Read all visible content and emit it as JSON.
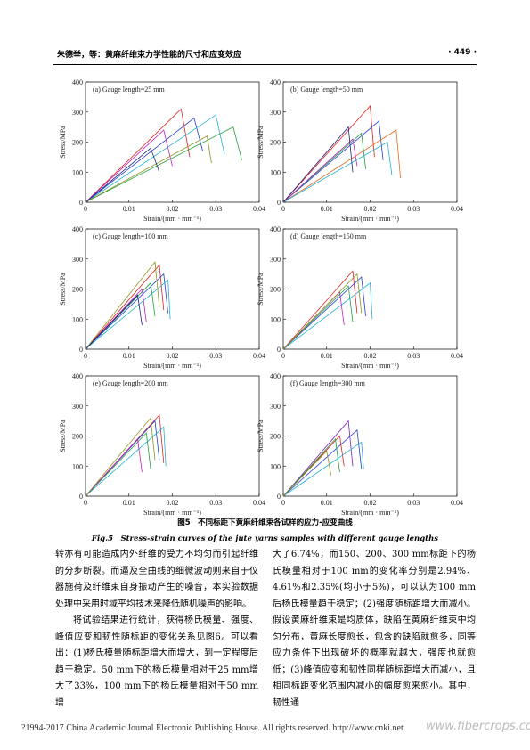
{
  "header": {
    "left": "朱德举，等：黄麻纤维束力学性能的尺寸和应变效应",
    "right": "· 449 ·"
  },
  "chart_data": [
    {
      "type": "line",
      "title": "(a) Gauge length=25 mm",
      "x_label": "Strain/(mm · mm⁻¹)",
      "y_label": "Stress/MPa",
      "xlim": [
        0,
        0.04
      ],
      "xticks": [
        0,
        0.01,
        0.02,
        0.03,
        0.04
      ],
      "ylim": [
        0,
        400
      ],
      "yticks": [
        0,
        100,
        200,
        300,
        400
      ],
      "series": [
        {
          "color": "#e02020",
          "x": [
            0,
            0.022,
            0.024
          ],
          "values": [
            0,
            310,
            150
          ]
        },
        {
          "color": "#2040d0",
          "x": [
            0,
            0.025,
            0.027
          ],
          "values": [
            0,
            280,
            170
          ]
        },
        {
          "color": "#20b0d0",
          "x": [
            0,
            0.03,
            0.032
          ],
          "values": [
            0,
            290,
            160
          ]
        },
        {
          "color": "#20a040",
          "x": [
            0,
            0.034,
            0.036
          ],
          "values": [
            0,
            250,
            140
          ]
        },
        {
          "color": "#c020c0",
          "x": [
            0,
            0.018,
            0.02
          ],
          "values": [
            0,
            240,
            120
          ]
        },
        {
          "color": "#909020",
          "x": [
            0,
            0.028,
            0.029
          ],
          "values": [
            0,
            220,
            130
          ]
        },
        {
          "color": "#202080",
          "x": [
            0,
            0.015,
            0.017
          ],
          "values": [
            0,
            180,
            100
          ]
        }
      ]
    },
    {
      "type": "line",
      "title": "(b) Gauge length=50 mm",
      "x_label": "Strain/(mm · mm⁻¹)",
      "y_label": "Stress/MPa",
      "xlim": [
        0,
        0.04
      ],
      "xticks": [
        0,
        0.01,
        0.02,
        0.03,
        0.04
      ],
      "ylim": [
        0,
        400
      ],
      "yticks": [
        0,
        100,
        200,
        300,
        400
      ],
      "series": [
        {
          "color": "#e02020",
          "x": [
            0,
            0.02,
            0.021
          ],
          "values": [
            0,
            320,
            150
          ]
        },
        {
          "color": "#2040d0",
          "x": [
            0,
            0.022,
            0.023
          ],
          "values": [
            0,
            270,
            140
          ]
        },
        {
          "color": "#e07020",
          "x": [
            0,
            0.026,
            0.027
          ],
          "values": [
            0,
            240,
            80
          ]
        },
        {
          "color": "#20a040",
          "x": [
            0,
            0.018,
            0.019
          ],
          "values": [
            0,
            230,
            110
          ]
        },
        {
          "color": "#c020c0",
          "x": [
            0,
            0.016,
            0.017
          ],
          "values": [
            0,
            210,
            120
          ]
        },
        {
          "color": "#20b0d0",
          "x": [
            0,
            0.024,
            0.025
          ],
          "values": [
            0,
            200,
            90
          ]
        },
        {
          "color": "#202080",
          "x": [
            0,
            0.015,
            0.016
          ],
          "values": [
            0,
            250,
            100
          ]
        }
      ]
    },
    {
      "type": "line",
      "title": "(c) Gauge length=100 mm",
      "x_label": "Strain/(mm · mm⁻¹)",
      "y_label": "Stress/MPa",
      "xlim": [
        0,
        0.04
      ],
      "xticks": [
        0,
        0.01,
        0.02,
        0.03,
        0.04
      ],
      "ylim": [
        0,
        400
      ],
      "yticks": [
        0,
        100,
        200,
        300,
        400
      ],
      "series": [
        {
          "color": "#e02020",
          "x": [
            0,
            0.017,
            0.018
          ],
          "values": [
            0,
            280,
            130
          ]
        },
        {
          "color": "#2040d0",
          "x": [
            0,
            0.018,
            0.019
          ],
          "values": [
            0,
            250,
            120
          ]
        },
        {
          "color": "#20b0d0",
          "x": [
            0,
            0.019,
            0.0195
          ],
          "values": [
            0,
            230,
            100
          ]
        },
        {
          "color": "#20a040",
          "x": [
            0,
            0.015,
            0.016
          ],
          "values": [
            0,
            220,
            110
          ]
        },
        {
          "color": "#c020c0",
          "x": [
            0,
            0.013,
            0.014
          ],
          "values": [
            0,
            200,
            90
          ]
        },
        {
          "color": "#909020",
          "x": [
            0,
            0.016,
            0.017
          ],
          "values": [
            0,
            290,
            140
          ]
        },
        {
          "color": "#202080",
          "x": [
            0,
            0.012,
            0.013
          ],
          "values": [
            0,
            180,
            80
          ]
        }
      ]
    },
    {
      "type": "line",
      "title": "(d) Gauge length=150 mm",
      "x_label": "Strain/(mm · mm⁻¹)",
      "y_label": "Stress/MPa",
      "xlim": [
        0,
        0.04
      ],
      "xticks": [
        0,
        0.01,
        0.02,
        0.03,
        0.04
      ],
      "ylim": [
        0,
        400
      ],
      "yticks": [
        0,
        100,
        200,
        300,
        400
      ],
      "series": [
        {
          "color": "#e02020",
          "x": [
            0,
            0.016,
            0.017
          ],
          "values": [
            0,
            260,
            120
          ]
        },
        {
          "color": "#2040d0",
          "x": [
            0,
            0.018,
            0.019
          ],
          "values": [
            0,
            240,
            110
          ]
        },
        {
          "color": "#20b0d0",
          "x": [
            0,
            0.02,
            0.0205
          ],
          "values": [
            0,
            220,
            100
          ]
        },
        {
          "color": "#20a040",
          "x": [
            0,
            0.015,
            0.016
          ],
          "values": [
            0,
            210,
            90
          ]
        },
        {
          "color": "#c020c0",
          "x": [
            0,
            0.013,
            0.014
          ],
          "values": [
            0,
            190,
            80
          ]
        },
        {
          "color": "#909020",
          "x": [
            0,
            0.017,
            0.018
          ],
          "values": [
            0,
            250,
            120
          ]
        }
      ]
    },
    {
      "type": "line",
      "title": "(e) Gauge length=200 mm",
      "x_label": "Strain/(mm · mm⁻¹)",
      "y_label": "Stress/MPa",
      "xlim": [
        0,
        0.04
      ],
      "xticks": [
        0,
        0.01,
        0.02,
        0.03,
        0.04
      ],
      "ylim": [
        0,
        400
      ],
      "yticks": [
        0,
        100,
        200,
        300,
        400
      ],
      "series": [
        {
          "color": "#e02020",
          "x": [
            0,
            0.017,
            0.018
          ],
          "values": [
            0,
            270,
            110
          ]
        },
        {
          "color": "#2040d0",
          "x": [
            0,
            0.016,
            0.017
          ],
          "values": [
            0,
            250,
            120
          ]
        },
        {
          "color": "#20b0d0",
          "x": [
            0,
            0.018,
            0.0185
          ],
          "values": [
            0,
            230,
            100
          ]
        },
        {
          "color": "#20a040",
          "x": [
            0,
            0.014,
            0.015
          ],
          "values": [
            0,
            210,
            90
          ]
        },
        {
          "color": "#c020c0",
          "x": [
            0,
            0.012,
            0.013
          ],
          "values": [
            0,
            190,
            80
          ]
        },
        {
          "color": "#909020",
          "x": [
            0,
            0.015,
            0.016
          ],
          "values": [
            0,
            260,
            120
          ]
        }
      ]
    },
    {
      "type": "line",
      "title": "(f) Gauge length=300 mm",
      "x_label": "Strain/(mm · mm⁻¹)",
      "y_label": "Stress/MPa",
      "xlim": [
        0,
        0.04
      ],
      "xticks": [
        0,
        0.01,
        0.02,
        0.03,
        0.04
      ],
      "ylim": [
        0,
        400
      ],
      "yticks": [
        0,
        100,
        200,
        300,
        400
      ],
      "series": [
        {
          "color": "#8020c0",
          "x": [
            0,
            0.015,
            0.016
          ],
          "values": [
            0,
            250,
            100
          ]
        },
        {
          "color": "#2040d0",
          "x": [
            0,
            0.017,
            0.018
          ],
          "values": [
            0,
            220,
            90
          ]
        },
        {
          "color": "#e02020",
          "x": [
            0,
            0.013,
            0.014
          ],
          "values": [
            0,
            200,
            100
          ]
        },
        {
          "color": "#20a040",
          "x": [
            0,
            0.012,
            0.013
          ],
          "values": [
            0,
            190,
            80
          ]
        },
        {
          "color": "#20b0d0",
          "x": [
            0,
            0.018,
            0.0185
          ],
          "values": [
            0,
            180,
            90
          ]
        },
        {
          "color": "#909020",
          "x": [
            0,
            0.01,
            0.011
          ],
          "values": [
            0,
            150,
            70
          ]
        }
      ]
    }
  ],
  "figure": {
    "caption_cn": "图5　不同标距下黄麻纤维束各试样的应力-应变曲线",
    "caption_en": "Fig.5　Stress-strain curves of the jute yarns samples with different gauge lengths"
  },
  "body": {
    "left": [
      "转亦有可能造成内外纤维的受力不均匀而引起纤维的分步断裂。而逼及全曲线的细微波动则来自于仪器施荷及纤维束自身振动产生的噪音，本实验数据处理中采用时域平均技术来降低随机噪声的影响。",
      "将试验结果进行统计，获得杨氏模量、强度、峰值应变和韧性随标距的变化关系见图6。可以看出：(1)杨氏模量随标距增大而增大，到一定程度后趋于稳定。50 mm下的杨氏模量相对于25 mm增大了33%，100 mm下的杨氏模量相对于50 mm增"
    ],
    "right": [
      "大了6.74%，而150、200、300 mm标距下的杨氏模量相对于100 mm的变化率分别是2.94%、4.61%和2.35%(均小于5%)，可以认为100 mm后杨氏模量趋于稳定；(2)强度随标距增大而减小。假设黄麻纤维束是均质体，缺陷在黄麻纤维束中均匀分布，黄麻长度愈长，包含的缺陷就愈多，同等应力条件下出现破坏的概率就越大，强度也就愈低；(3)峰值应变和韧性同样随标距增大而减小，且相同标距变化范围内减小的幅度愈来愈小。其中，韧性通"
    ]
  },
  "footer": {
    "copyright": "?1994-2017 China Academic Journal Electronic Publishing House. All rights reserved.    http://www.cnki.net",
    "watermark": "www.fibercrops.com"
  }
}
